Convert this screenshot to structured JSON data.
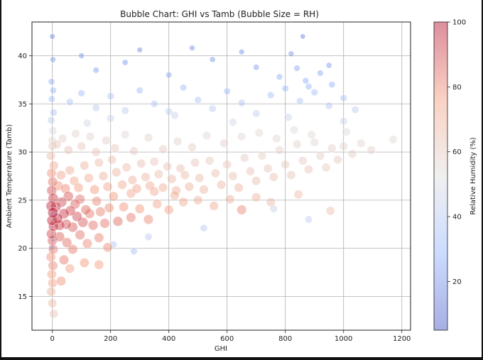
{
  "chart_data": {
    "type": "scatter",
    "title": "Bubble Chart: GHI vs Tamb (Bubble Size = RH)",
    "xlabel": "GHI",
    "ylabel": "Ambient Temperature (Tamb)",
    "xlim": [
      -70,
      1230
    ],
    "ylim": [
      11.5,
      43.5
    ],
    "xticks": [
      0,
      200,
      400,
      600,
      800,
      1000,
      1200
    ],
    "yticks": [
      15,
      20,
      25,
      30,
      35,
      40
    ],
    "grid": true,
    "colormap": "coolwarm",
    "point_alpha": 0.45,
    "size_encoding": "Relative Humidity (%)",
    "colorbar": {
      "label": "Relative Humidity (%)",
      "min": 5,
      "max": 100,
      "ticks": [
        20,
        40,
        60,
        80,
        100
      ]
    },
    "points": [
      {
        "x": 0,
        "y": 42,
        "rh": 18
      },
      {
        "x": 2,
        "y": 39.6,
        "rh": 22
      },
      {
        "x": -3,
        "y": 37.3,
        "rh": 28
      },
      {
        "x": 3,
        "y": 36.4,
        "rh": 30
      },
      {
        "x": -2,
        "y": 35.5,
        "rh": 34
      },
      {
        "x": 4,
        "y": 34.1,
        "rh": 38
      },
      {
        "x": -4,
        "y": 33.3,
        "rh": 42
      },
      {
        "x": 2,
        "y": 32.2,
        "rh": 50
      },
      {
        "x": -1,
        "y": 31.2,
        "rh": 55
      },
      {
        "x": 0,
        "y": 30.6,
        "rh": 60
      },
      {
        "x": -5,
        "y": 29.6,
        "rh": 66
      },
      {
        "x": 5,
        "y": 28.6,
        "rh": 72
      },
      {
        "x": -3,
        "y": 27.8,
        "rh": 78
      },
      {
        "x": 1,
        "y": 26.9,
        "rh": 83
      },
      {
        "x": -2,
        "y": 26.0,
        "rh": 88
      },
      {
        "x": 3,
        "y": 25.2,
        "rh": 92
      },
      {
        "x": -4,
        "y": 24.4,
        "rh": 95
      },
      {
        "x": 2,
        "y": 23.7,
        "rh": 97
      },
      {
        "x": -1,
        "y": 22.9,
        "rh": 96
      },
      {
        "x": 4,
        "y": 22.3,
        "rh": 94
      },
      {
        "x": -3,
        "y": 21.5,
        "rh": 90
      },
      {
        "x": 0,
        "y": 20.8,
        "rh": 86
      },
      {
        "x": 3,
        "y": 19.9,
        "rh": 82
      },
      {
        "x": -5,
        "y": 19.1,
        "rh": 78
      },
      {
        "x": 2,
        "y": 18.2,
        "rh": 80
      },
      {
        "x": -2,
        "y": 17.3,
        "rh": 76
      },
      {
        "x": 1,
        "y": 16.4,
        "rh": 74
      },
      {
        "x": -4,
        "y": 15.5,
        "rh": 70
      },
      {
        "x": 0,
        "y": 14.3,
        "rh": 66
      },
      {
        "x": 5,
        "y": 13.2,
        "rh": 62
      },
      {
        "x": 2,
        "y": 21.0,
        "rh": 30
      },
      {
        "x": -2,
        "y": 20.1,
        "rh": 26
      },
      {
        "x": 4,
        "y": 23.5,
        "rh": 35
      },
      {
        "x": 12,
        "y": 24.3,
        "rh": 94
      },
      {
        "x": 18,
        "y": 23.1,
        "rh": 96
      },
      {
        "x": 25,
        "y": 22.4,
        "rh": 92
      },
      {
        "x": 32,
        "y": 24.8,
        "rh": 90
      },
      {
        "x": 40,
        "y": 23.6,
        "rh": 93
      },
      {
        "x": 48,
        "y": 22.5,
        "rh": 89
      },
      {
        "x": 55,
        "y": 25.4,
        "rh": 88
      },
      {
        "x": 62,
        "y": 23.9,
        "rh": 91
      },
      {
        "x": 70,
        "y": 22.2,
        "rh": 87
      },
      {
        "x": 78,
        "y": 24.6,
        "rh": 86
      },
      {
        "x": 85,
        "y": 23.3,
        "rh": 90
      },
      {
        "x": 95,
        "y": 25.1,
        "rh": 84
      },
      {
        "x": 105,
        "y": 22.7,
        "rh": 88
      },
      {
        "x": 115,
        "y": 24.0,
        "rh": 85
      },
      {
        "x": 128,
        "y": 23.6,
        "rh": 82
      },
      {
        "x": 140,
        "y": 22.4,
        "rh": 84
      },
      {
        "x": 152,
        "y": 24.9,
        "rh": 80
      },
      {
        "x": 165,
        "y": 23.8,
        "rh": 81
      },
      {
        "x": 180,
        "y": 22.6,
        "rh": 83
      },
      {
        "x": 195,
        "y": 24.2,
        "rh": 79
      },
      {
        "x": 210,
        "y": 25.4,
        "rh": 77
      },
      {
        "x": 225,
        "y": 22.8,
        "rh": 85
      },
      {
        "x": 245,
        "y": 24.3,
        "rh": 78
      },
      {
        "x": 270,
        "y": 23.2,
        "rh": 82
      },
      {
        "x": 20,
        "y": 26.5,
        "rh": 78
      },
      {
        "x": 30,
        "y": 27.6,
        "rh": 74
      },
      {
        "x": 45,
        "y": 26.2,
        "rh": 80
      },
      {
        "x": 60,
        "y": 28.1,
        "rh": 70
      },
      {
        "x": 75,
        "y": 27.0,
        "rh": 73
      },
      {
        "x": 90,
        "y": 26.3,
        "rh": 76
      },
      {
        "x": 110,
        "y": 28.6,
        "rh": 68
      },
      {
        "x": 125,
        "y": 27.3,
        "rh": 72
      },
      {
        "x": 145,
        "y": 26.1,
        "rh": 77
      },
      {
        "x": 160,
        "y": 28.9,
        "rh": 66
      },
      {
        "x": 175,
        "y": 27.5,
        "rh": 70
      },
      {
        "x": 190,
        "y": 26.4,
        "rh": 74
      },
      {
        "x": 205,
        "y": 29.2,
        "rh": 64
      },
      {
        "x": 220,
        "y": 27.9,
        "rh": 68
      },
      {
        "x": 240,
        "y": 26.6,
        "rh": 72
      },
      {
        "x": 255,
        "y": 28.4,
        "rh": 66
      },
      {
        "x": 275,
        "y": 27.1,
        "rh": 70
      },
      {
        "x": 290,
        "y": 26.2,
        "rh": 74
      },
      {
        "x": 305,
        "y": 28.8,
        "rh": 64
      },
      {
        "x": 320,
        "y": 27.4,
        "rh": 68
      },
      {
        "x": 335,
        "y": 26.5,
        "rh": 72
      },
      {
        "x": 350,
        "y": 29.0,
        "rh": 62
      },
      {
        "x": 365,
        "y": 27.7,
        "rh": 66
      },
      {
        "x": 380,
        "y": 26.3,
        "rh": 70
      },
      {
        "x": 395,
        "y": 28.5,
        "rh": 63
      },
      {
        "x": 410,
        "y": 27.2,
        "rh": 67
      },
      {
        "x": 425,
        "y": 26.0,
        "rh": 71
      },
      {
        "x": 440,
        "y": 28.3,
        "rh": 64
      },
      {
        "x": 455,
        "y": 27.6,
        "rh": 66
      },
      {
        "x": 470,
        "y": 26.4,
        "rh": 69
      },
      {
        "x": 490,
        "y": 28.9,
        "rh": 62
      },
      {
        "x": 505,
        "y": 27.3,
        "rh": 65
      },
      {
        "x": 520,
        "y": 26.1,
        "rh": 68
      },
      {
        "x": 540,
        "y": 29.1,
        "rh": 61
      },
      {
        "x": 560,
        "y": 27.8,
        "rh": 64
      },
      {
        "x": 580,
        "y": 26.6,
        "rh": 67
      },
      {
        "x": 600,
        "y": 28.7,
        "rh": 62
      },
      {
        "x": 620,
        "y": 27.5,
        "rh": 64
      },
      {
        "x": 640,
        "y": 26.3,
        "rh": 68
      },
      {
        "x": 660,
        "y": 29.4,
        "rh": 60
      },
      {
        "x": 680,
        "y": 28.0,
        "rh": 63
      },
      {
        "x": 700,
        "y": 27.0,
        "rh": 65
      },
      {
        "x": 720,
        "y": 29.6,
        "rh": 59
      },
      {
        "x": 740,
        "y": 28.3,
        "rh": 62
      },
      {
        "x": 760,
        "y": 27.4,
        "rh": 64
      },
      {
        "x": 780,
        "y": 30.2,
        "rh": 58
      },
      {
        "x": 800,
        "y": 28.7,
        "rh": 61
      },
      {
        "x": 820,
        "y": 27.6,
        "rh": 63
      },
      {
        "x": 840,
        "y": 30.8,
        "rh": 57
      },
      {
        "x": 860,
        "y": 29.1,
        "rh": 60
      },
      {
        "x": 880,
        "y": 28.2,
        "rh": 62
      },
      {
        "x": 900,
        "y": 31.0,
        "rh": 56
      },
      {
        "x": 920,
        "y": 29.6,
        "rh": 59
      },
      {
        "x": 940,
        "y": 28.4,
        "rh": 61
      },
      {
        "x": 960,
        "y": 30.4,
        "rh": 58
      },
      {
        "x": 980,
        "y": 29.2,
        "rh": 60
      },
      {
        "x": 1000,
        "y": 30.6,
        "rh": 57
      },
      {
        "x": 1030,
        "y": 29.8,
        "rh": 59
      },
      {
        "x": 1060,
        "y": 30.9,
        "rh": 56
      },
      {
        "x": 1095,
        "y": 30.2,
        "rh": 58
      },
      {
        "x": 1170,
        "y": 31.3,
        "rh": 55
      },
      {
        "x": 955,
        "y": 23.9,
        "rh": 64
      },
      {
        "x": 15,
        "y": 30.8,
        "rh": 62
      },
      {
        "x": 35,
        "y": 31.4,
        "rh": 58
      },
      {
        "x": 55,
        "y": 30.2,
        "rh": 63
      },
      {
        "x": 80,
        "y": 31.9,
        "rh": 56
      },
      {
        "x": 100,
        "y": 30.6,
        "rh": 60
      },
      {
        "x": 130,
        "y": 31.6,
        "rh": 57
      },
      {
        "x": 150,
        "y": 30.0,
        "rh": 62
      },
      {
        "x": 185,
        "y": 31.2,
        "rh": 58
      },
      {
        "x": 215,
        "y": 30.4,
        "rh": 61
      },
      {
        "x": 250,
        "y": 31.8,
        "rh": 56
      },
      {
        "x": 280,
        "y": 30.1,
        "rh": 60
      },
      {
        "x": 330,
        "y": 31.5,
        "rh": 57
      },
      {
        "x": 380,
        "y": 30.3,
        "rh": 60
      },
      {
        "x": 430,
        "y": 31.1,
        "rh": 58
      },
      {
        "x": 480,
        "y": 30.5,
        "rh": 59
      },
      {
        "x": 530,
        "y": 31.7,
        "rh": 56
      },
      {
        "x": 590,
        "y": 30.9,
        "rh": 58
      },
      {
        "x": 650,
        "y": 31.6,
        "rh": 56
      },
      {
        "x": 710,
        "y": 32.0,
        "rh": 55
      },
      {
        "x": 770,
        "y": 31.4,
        "rh": 56
      },
      {
        "x": 830,
        "y": 32.3,
        "rh": 54
      },
      {
        "x": 890,
        "y": 31.8,
        "rh": 55
      },
      {
        "x": 1010,
        "y": 32.1,
        "rh": 54
      },
      {
        "x": 25,
        "y": 21.2,
        "rh": 86
      },
      {
        "x": 50,
        "y": 20.6,
        "rh": 84
      },
      {
        "x": 70,
        "y": 19.9,
        "rh": 82
      },
      {
        "x": 95,
        "y": 21.4,
        "rh": 83
      },
      {
        "x": 120,
        "y": 20.5,
        "rh": 80
      },
      {
        "x": 160,
        "y": 21.1,
        "rh": 81
      },
      {
        "x": 190,
        "y": 20.1,
        "rh": 79
      },
      {
        "x": 40,
        "y": 18.8,
        "rh": 82
      },
      {
        "x": 30,
        "y": 16.6,
        "rh": 78
      },
      {
        "x": 160,
        "y": 18.3,
        "rh": 76
      },
      {
        "x": 60,
        "y": 17.9,
        "rh": 74
      },
      {
        "x": 110,
        "y": 18.5,
        "rh": 77
      },
      {
        "x": 300,
        "y": 24.1,
        "rh": 77
      },
      {
        "x": 330,
        "y": 23.0,
        "rh": 80
      },
      {
        "x": 360,
        "y": 24.6,
        "rh": 74
      },
      {
        "x": 400,
        "y": 24.0,
        "rh": 75
      },
      {
        "x": 450,
        "y": 24.8,
        "rh": 72
      },
      {
        "x": 500,
        "y": 25.0,
        "rh": 70
      },
      {
        "x": 555,
        "y": 24.4,
        "rh": 71
      },
      {
        "x": 610,
        "y": 25.1,
        "rh": 69
      },
      {
        "x": 650,
        "y": 24.0,
        "rh": 80
      },
      {
        "x": 700,
        "y": 25.3,
        "rh": 68
      },
      {
        "x": 750,
        "y": 24.8,
        "rh": 67
      },
      {
        "x": 845,
        "y": 25.6,
        "rh": 66
      },
      {
        "x": 270,
        "y": 25.7,
        "rh": 73
      },
      {
        "x": 350,
        "y": 25.9,
        "rh": 72
      },
      {
        "x": 420,
        "y": 25.5,
        "rh": 71
      },
      {
        "x": 60,
        "y": 35.2,
        "rh": 38
      },
      {
        "x": 100,
        "y": 36.1,
        "rh": 34
      },
      {
        "x": 150,
        "y": 34.6,
        "rh": 40
      },
      {
        "x": 200,
        "y": 35.8,
        "rh": 36
      },
      {
        "x": 250,
        "y": 34.3,
        "rh": 42
      },
      {
        "x": 300,
        "y": 36.4,
        "rh": 33
      },
      {
        "x": 350,
        "y": 35.0,
        "rh": 38
      },
      {
        "x": 400,
        "y": 34.2,
        "rh": 42
      },
      {
        "x": 450,
        "y": 36.7,
        "rh": 32
      },
      {
        "x": 500,
        "y": 35.4,
        "rh": 37
      },
      {
        "x": 550,
        "y": 34.5,
        "rh": 41
      },
      {
        "x": 600,
        "y": 36.3,
        "rh": 33
      },
      {
        "x": 650,
        "y": 35.1,
        "rh": 38
      },
      {
        "x": 700,
        "y": 34.0,
        "rh": 43
      },
      {
        "x": 750,
        "y": 35.9,
        "rh": 35
      },
      {
        "x": 800,
        "y": 36.6,
        "rh": 32
      },
      {
        "x": 850,
        "y": 35.3,
        "rh": 37
      },
      {
        "x": 900,
        "y": 36.2,
        "rh": 34
      },
      {
        "x": 950,
        "y": 34.8,
        "rh": 39
      },
      {
        "x": 1000,
        "y": 35.6,
        "rh": 36
      },
      {
        "x": 1040,
        "y": 34.4,
        "rh": 41
      },
      {
        "x": 870,
        "y": 37.4,
        "rh": 28
      },
      {
        "x": 920,
        "y": 38.2,
        "rh": 26
      },
      {
        "x": 960,
        "y": 37.0,
        "rh": 30
      },
      {
        "x": 840,
        "y": 38.7,
        "rh": 25
      },
      {
        "x": 780,
        "y": 37.8,
        "rh": 27
      },
      {
        "x": 880,
        "y": 36.8,
        "rh": 31
      },
      {
        "x": 150,
        "y": 38.5,
        "rh": 24
      },
      {
        "x": 250,
        "y": 39.3,
        "rh": 22
      },
      {
        "x": 400,
        "y": 38.0,
        "rh": 25
      },
      {
        "x": 550,
        "y": 39.6,
        "rh": 21
      },
      {
        "x": 700,
        "y": 38.8,
        "rh": 23
      },
      {
        "x": 820,
        "y": 40.2,
        "rh": 20
      },
      {
        "x": 100,
        "y": 40.0,
        "rh": 20
      },
      {
        "x": 300,
        "y": 40.6,
        "rh": 18
      },
      {
        "x": 480,
        "y": 40.8,
        "rh": 18
      },
      {
        "x": 650,
        "y": 40.4,
        "rh": 19
      },
      {
        "x": 860,
        "y": 42.0,
        "rh": 15
      },
      {
        "x": 950,
        "y": 39.0,
        "rh": 22
      },
      {
        "x": 200,
        "y": 33.5,
        "rh": 46
      },
      {
        "x": 420,
        "y": 33.8,
        "rh": 45
      },
      {
        "x": 620,
        "y": 33.1,
        "rh": 48
      },
      {
        "x": 810,
        "y": 33.6,
        "rh": 46
      },
      {
        "x": 1000,
        "y": 33.2,
        "rh": 47
      },
      {
        "x": 120,
        "y": 33.0,
        "rh": 48
      },
      {
        "x": 280,
        "y": 19.7,
        "rh": 35
      },
      {
        "x": 210,
        "y": 20.4,
        "rh": 38
      },
      {
        "x": 330,
        "y": 21.2,
        "rh": 40
      },
      {
        "x": 520,
        "y": 22.1,
        "rh": 40
      },
      {
        "x": 760,
        "y": 24.1,
        "rh": 45
      },
      {
        "x": 880,
        "y": 23.0,
        "rh": 42
      }
    ]
  }
}
